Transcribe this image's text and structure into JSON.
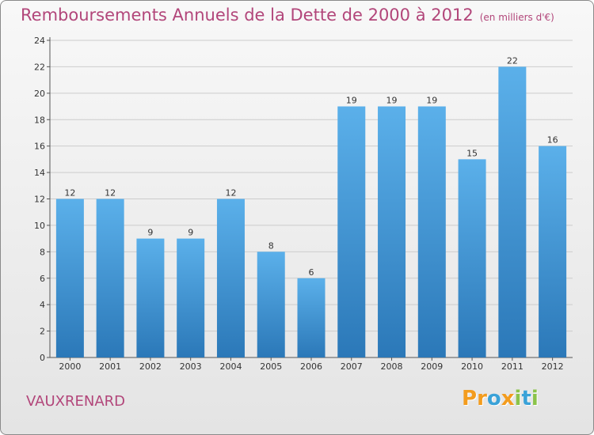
{
  "title": "Remboursements Annuels de la Dette de 2000 à 2012",
  "unit_note": "(en milliers d'€)",
  "commune": "VAUXRENARD",
  "logo": {
    "text": "Proxiti",
    "letters": [
      {
        "ch": "P",
        "color": "#f39c1e"
      },
      {
        "ch": "r",
        "color": "#f39c1e"
      },
      {
        "ch": "o",
        "color": "#3aa2d8"
      },
      {
        "ch": "x",
        "color": "#f39c1e"
      },
      {
        "ch": "i",
        "color": "#8bc34a"
      },
      {
        "ch": "t",
        "color": "#3aa2d8"
      },
      {
        "ch": "i",
        "color": "#8bc34a"
      }
    ]
  },
  "colors": {
    "title": "#b2467a",
    "bar_top": "#5bb0ea",
    "bar_bottom": "#2b78b8",
    "grid": "#cccccc"
  },
  "chart_data": {
    "type": "bar",
    "categories": [
      "2000",
      "2001",
      "2002",
      "2003",
      "2004",
      "2005",
      "2006",
      "2007",
      "2008",
      "2009",
      "2010",
      "2011",
      "2012"
    ],
    "values": [
      12,
      12,
      9,
      9,
      12,
      8,
      6,
      19,
      19,
      19,
      15,
      22,
      16
    ],
    "title": "Remboursements Annuels de la Dette de 2000 à 2012",
    "xlabel": "",
    "ylabel": "",
    "ylim": [
      0,
      24
    ],
    "yticks": [
      0,
      2,
      4,
      6,
      8,
      10,
      12,
      14,
      16,
      18,
      20,
      22,
      24
    ],
    "grid": true,
    "data_labels": true
  }
}
